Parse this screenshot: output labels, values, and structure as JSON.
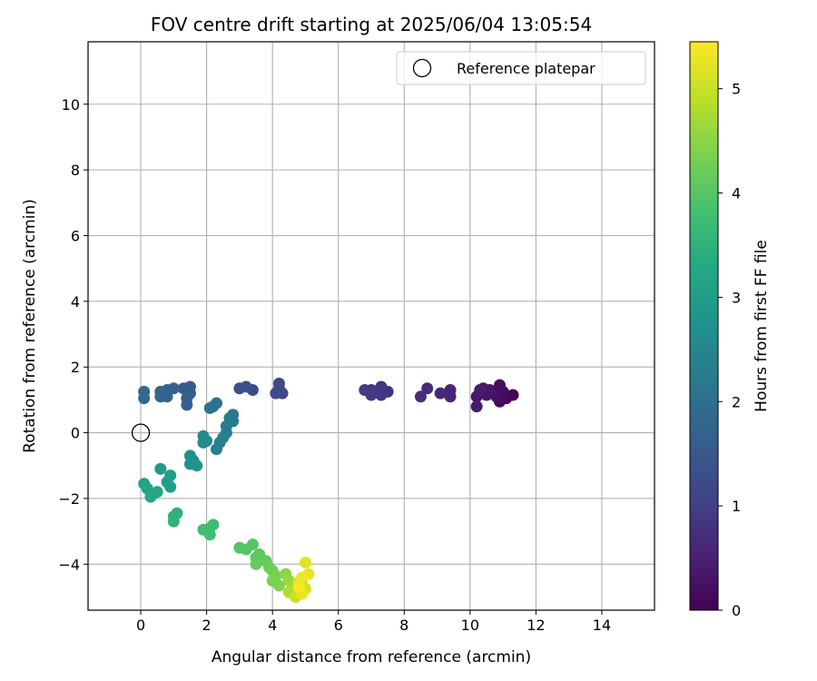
{
  "chart_data": {
    "type": "scatter",
    "title": "FOV centre drift starting at 2025/06/04 13:05:54",
    "xlabel": "Angular distance from reference (arcmin)",
    "ylabel": "Rotation from reference (arcmin)",
    "xlim": [
      -1.6,
      15.6
    ],
    "ylim": [
      -5.4,
      11.9
    ],
    "xticks": [
      0,
      2,
      4,
      6,
      8,
      10,
      12,
      14
    ],
    "yticks": [
      -4,
      -2,
      0,
      2,
      4,
      6,
      8,
      10
    ],
    "grid": true,
    "legend": {
      "position": "top-right",
      "entries": [
        "Reference platepar"
      ]
    },
    "reference": {
      "x": 0.0,
      "y": 0.0,
      "label": "Reference platepar"
    },
    "colorbar": {
      "label": "Hours from first FF file",
      "range": [
        0,
        5.45
      ],
      "ticks": [
        0,
        1,
        2,
        3,
        4,
        5
      ],
      "colormap": "viridis"
    },
    "points": [
      {
        "x": 11.3,
        "y": 1.15,
        "h": 0.05
      },
      {
        "x": 11.1,
        "y": 1.05,
        "h": 0.1
      },
      {
        "x": 10.9,
        "y": 0.95,
        "h": 0.15
      },
      {
        "x": 11.0,
        "y": 1.25,
        "h": 0.18
      },
      {
        "x": 10.8,
        "y": 1.1,
        "h": 0.2
      },
      {
        "x": 10.9,
        "y": 1.45,
        "h": 0.22
      },
      {
        "x": 10.7,
        "y": 1.2,
        "h": 0.25
      },
      {
        "x": 10.6,
        "y": 1.3,
        "h": 0.28
      },
      {
        "x": 10.4,
        "y": 1.35,
        "h": 0.3
      },
      {
        "x": 10.5,
        "y": 1.15,
        "h": 0.33
      },
      {
        "x": 10.3,
        "y": 1.2,
        "h": 0.35
      },
      {
        "x": 10.2,
        "y": 1.1,
        "h": 0.38
      },
      {
        "x": 10.2,
        "y": 0.8,
        "h": 0.4
      },
      {
        "x": 10.3,
        "y": 1.3,
        "h": 0.42
      },
      {
        "x": 9.4,
        "y": 1.3,
        "h": 0.55
      },
      {
        "x": 9.4,
        "y": 1.1,
        "h": 0.58
      },
      {
        "x": 9.1,
        "y": 1.2,
        "h": 0.62
      },
      {
        "x": 8.7,
        "y": 1.35,
        "h": 0.68
      },
      {
        "x": 8.5,
        "y": 1.1,
        "h": 0.72
      },
      {
        "x": 7.5,
        "y": 1.25,
        "h": 0.82
      },
      {
        "x": 7.3,
        "y": 1.4,
        "h": 0.85
      },
      {
        "x": 7.3,
        "y": 1.15,
        "h": 0.88
      },
      {
        "x": 7.0,
        "y": 1.3,
        "h": 0.9
      },
      {
        "x": 7.0,
        "y": 1.15,
        "h": 0.92
      },
      {
        "x": 6.8,
        "y": 1.3,
        "h": 0.95
      },
      {
        "x": 4.3,
        "y": 1.2,
        "h": 1.15
      },
      {
        "x": 4.2,
        "y": 1.5,
        "h": 1.18
      },
      {
        "x": 4.2,
        "y": 1.35,
        "h": 1.2
      },
      {
        "x": 4.1,
        "y": 1.2,
        "h": 1.22
      },
      {
        "x": 3.4,
        "y": 1.3,
        "h": 1.3
      },
      {
        "x": 3.2,
        "y": 1.4,
        "h": 1.33
      },
      {
        "x": 3.0,
        "y": 1.35,
        "h": 1.36
      },
      {
        "x": 1.5,
        "y": 1.4,
        "h": 1.55
      },
      {
        "x": 1.3,
        "y": 1.35,
        "h": 1.58
      },
      {
        "x": 1.5,
        "y": 1.2,
        "h": 1.6
      },
      {
        "x": 1.4,
        "y": 1.05,
        "h": 1.62
      },
      {
        "x": 1.4,
        "y": 0.85,
        "h": 1.64
      },
      {
        "x": 1.0,
        "y": 1.35,
        "h": 1.7
      },
      {
        "x": 0.8,
        "y": 1.3,
        "h": 1.73
      },
      {
        "x": 0.8,
        "y": 1.1,
        "h": 1.76
      },
      {
        "x": 0.6,
        "y": 1.1,
        "h": 1.78
      },
      {
        "x": 0.6,
        "y": 1.25,
        "h": 1.8
      },
      {
        "x": 0.1,
        "y": 1.25,
        "h": 1.85
      },
      {
        "x": 0.1,
        "y": 1.05,
        "h": 1.87
      },
      {
        "x": 2.3,
        "y": 0.9,
        "h": 2.05
      },
      {
        "x": 2.2,
        "y": 0.8,
        "h": 2.08
      },
      {
        "x": 2.1,
        "y": 0.75,
        "h": 2.1
      },
      {
        "x": 2.8,
        "y": 0.55,
        "h": 2.2
      },
      {
        "x": 2.7,
        "y": 0.45,
        "h": 2.22
      },
      {
        "x": 2.8,
        "y": 0.35,
        "h": 2.25
      },
      {
        "x": 2.6,
        "y": 0.2,
        "h": 2.28
      },
      {
        "x": 2.6,
        "y": 0.0,
        "h": 2.32
      },
      {
        "x": 2.5,
        "y": -0.15,
        "h": 2.35
      },
      {
        "x": 2.4,
        "y": -0.3,
        "h": 2.38
      },
      {
        "x": 2.3,
        "y": -0.5,
        "h": 2.4
      },
      {
        "x": 1.9,
        "y": -0.1,
        "h": 2.55
      },
      {
        "x": 2.0,
        "y": -0.25,
        "h": 2.58
      },
      {
        "x": 1.9,
        "y": -0.3,
        "h": 2.6
      },
      {
        "x": 1.5,
        "y": -0.7,
        "h": 2.7
      },
      {
        "x": 1.6,
        "y": -0.85,
        "h": 2.72
      },
      {
        "x": 1.5,
        "y": -0.95,
        "h": 2.75
      },
      {
        "x": 1.7,
        "y": -1.0,
        "h": 2.78
      },
      {
        "x": 0.6,
        "y": -1.1,
        "h": 2.95
      },
      {
        "x": 0.9,
        "y": -1.3,
        "h": 3.0
      },
      {
        "x": 0.8,
        "y": -1.5,
        "h": 3.03
      },
      {
        "x": 0.9,
        "y": -1.65,
        "h": 3.05
      },
      {
        "x": 0.1,
        "y": -1.55,
        "h": 3.15
      },
      {
        "x": 0.2,
        "y": -1.7,
        "h": 3.18
      },
      {
        "x": 0.4,
        "y": -1.85,
        "h": 3.2
      },
      {
        "x": 0.5,
        "y": -1.8,
        "h": 3.22
      },
      {
        "x": 0.3,
        "y": -1.95,
        "h": 3.25
      },
      {
        "x": 1.1,
        "y": -2.45,
        "h": 3.45
      },
      {
        "x": 1.0,
        "y": -2.55,
        "h": 3.48
      },
      {
        "x": 1.0,
        "y": -2.7,
        "h": 3.5
      },
      {
        "x": 2.2,
        "y": -2.8,
        "h": 3.7
      },
      {
        "x": 2.1,
        "y": -2.9,
        "h": 3.73
      },
      {
        "x": 1.9,
        "y": -2.95,
        "h": 3.76
      },
      {
        "x": 2.1,
        "y": -3.1,
        "h": 3.78
      },
      {
        "x": 3.0,
        "y": -3.5,
        "h": 3.95
      },
      {
        "x": 3.2,
        "y": -3.55,
        "h": 3.98
      },
      {
        "x": 3.4,
        "y": -3.4,
        "h": 4.0
      },
      {
        "x": 3.6,
        "y": -3.7,
        "h": 4.05
      },
      {
        "x": 3.5,
        "y": -3.8,
        "h": 4.08
      },
      {
        "x": 3.8,
        "y": -3.9,
        "h": 4.12
      },
      {
        "x": 3.5,
        "y": -4.0,
        "h": 4.15
      },
      {
        "x": 3.9,
        "y": -4.1,
        "h": 4.2
      },
      {
        "x": 4.0,
        "y": -4.2,
        "h": 4.25
      },
      {
        "x": 4.1,
        "y": -4.35,
        "h": 4.3
      },
      {
        "x": 4.0,
        "y": -4.5,
        "h": 4.35
      },
      {
        "x": 4.2,
        "y": -4.65,
        "h": 4.4
      },
      {
        "x": 4.4,
        "y": -4.3,
        "h": 4.5
      },
      {
        "x": 4.5,
        "y": -4.5,
        "h": 4.6
      },
      {
        "x": 4.6,
        "y": -4.7,
        "h": 4.7
      },
      {
        "x": 4.5,
        "y": -4.85,
        "h": 4.8
      },
      {
        "x": 4.8,
        "y": -4.8,
        "h": 4.9
      },
      {
        "x": 4.7,
        "y": -5.0,
        "h": 5.0
      },
      {
        "x": 4.9,
        "y": -4.6,
        "h": 5.05
      },
      {
        "x": 5.0,
        "y": -4.75,
        "h": 5.1
      },
      {
        "x": 4.8,
        "y": -4.55,
        "h": 5.15
      },
      {
        "x": 5.0,
        "y": -3.95,
        "h": 5.2
      },
      {
        "x": 5.1,
        "y": -4.3,
        "h": 5.25
      },
      {
        "x": 4.9,
        "y": -4.9,
        "h": 5.3
      },
      {
        "x": 4.9,
        "y": -4.4,
        "h": 5.35
      },
      {
        "x": 4.8,
        "y": -4.7,
        "h": 5.4
      }
    ]
  }
}
